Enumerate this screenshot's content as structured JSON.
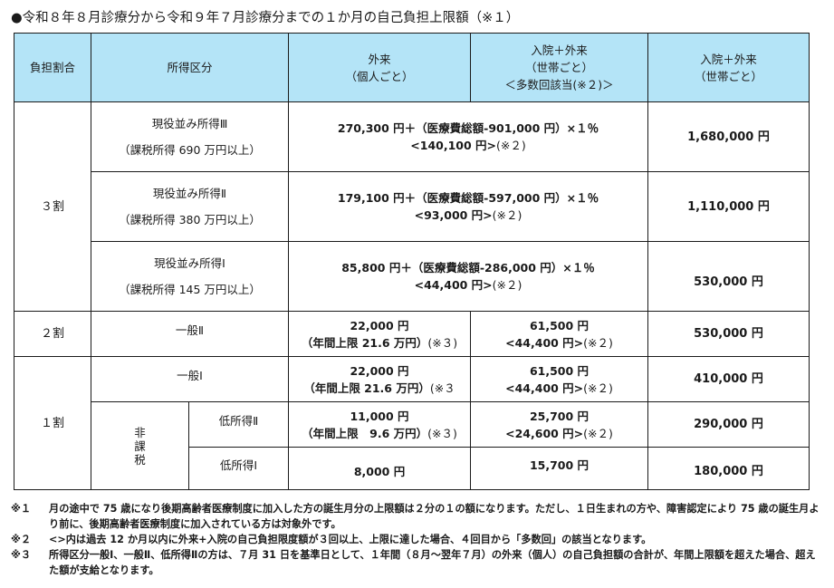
{
  "title": "●令和８年８月診療分から令和９年７月診療分までの１か月の自己負担上限額（※１）",
  "headers": {
    "ratio": "負担割合",
    "income": "所得区分",
    "outpatient_line1": "外来",
    "outpatient_line2": "（個人ごと）",
    "combo_line1": "入院＋外来",
    "combo_line2": "（世帯ごと）",
    "combo_line3": "＜多数回該当(※２)＞",
    "household_line1": "入院＋外来",
    "household_line2": "（世帯ごと）"
  },
  "rows": {
    "r3": {
      "ratio": "３割",
      "gen3": {
        "income_line1": "現役並み所得Ⅲ",
        "income_line2": "（課税所得 690 万円以上）",
        "formula_bold": "270,300 円＋（医療費総額-901,000 円）×１％",
        "multi_bold": "<140,100 円>",
        "multi_note": "(※２)",
        "household": "1,680,000 円"
      },
      "gen2": {
        "income_line1": "現役並み所得Ⅱ",
        "income_line2": "（課税所得 380 万円以上）",
        "formula_bold": "179,100 円＋（医療費総額-597,000 円）×１％",
        "multi_bold": "<93,000 円>",
        "multi_note": "(※２)",
        "household": "1,110,000 円"
      },
      "gen1": {
        "income_line1": "現役並み所得Ⅰ",
        "income_line2": "（課税所得 145 万円以上）",
        "formula_bold": "85,800 円＋（医療費総額-286,000 円）×１％",
        "multi_bold": "<44,400 円>",
        "multi_note": "(※２)",
        "household": "530,000 円"
      }
    },
    "r2": {
      "ratio": "２割",
      "income": "一般Ⅱ",
      "out_amount": "22,000 円",
      "out_limit_bold": "（年間上限 21.6 万円）",
      "out_limit_note": "(※３)",
      "combo_amount": "61,500 円",
      "combo_multi_bold": "<44,400 円>",
      "combo_multi_note": "(※２)",
      "household": "530,000 円"
    },
    "r1": {
      "ratio": "１割",
      "general1": {
        "income": "一般Ⅰ",
        "out_amount": "22,000 円",
        "out_limit_bold": "（年間上限 21.6 万円）",
        "out_limit_note": "(※３",
        "combo_amount": "61,500 円",
        "combo_multi_bold": "<44,400 円>",
        "combo_multi_note": "(※２)",
        "household": "410,000 円"
      },
      "hikazei": [
        "非",
        "課",
        "税"
      ],
      "low2": {
        "income": "低所得Ⅱ",
        "out_amount": "11,000 円",
        "out_limit_bold": "（年間上限　9.6 万円）",
        "out_limit_note": "(※３)",
        "combo_amount": "25,700 円",
        "combo_multi_bold": "<24,600 円>",
        "combo_multi_note": "(※２)",
        "household": "290,000 円"
      },
      "low1": {
        "income": "低所得Ⅰ",
        "out_amount": "8,000 円",
        "combo_amount": "15,700 円",
        "household": "180,000 円"
      }
    }
  },
  "notes": [
    {
      "mark": "※１",
      "text": "月の途中で 75 歳になり後期高齢者医療制度に加入した方の誕生月分の上限額は２分の１の額になります。ただし、１日生まれの方や、障害認定により 75 歳の誕生月より前に、後期高齢者医療制度に加入されている方は対象外です。"
    },
    {
      "mark": "※２",
      "text": "<>内は過去 12 か月以内に外来+入院の自己負担限度額が３回以上、上限に達した場合、４回目から「多数回」の該当となります。"
    },
    {
      "mark": "※３",
      "text": "所得区分一般Ⅰ、一般Ⅱ、低所得Ⅱの方は、７月 31 日を基準日として、１年間（８月～翌年７月）の外来（個人）の自己負担額の合計が、年間上限額を超えた場合、超えた額が支給となります。"
    }
  ]
}
